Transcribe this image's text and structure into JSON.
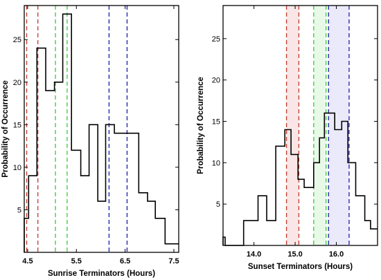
{
  "chart_data": [
    {
      "type": "histogram",
      "xlabel": "Sunrise Terminators (Hours)",
      "ylabel": "Probability of Occurrence",
      "xlim": [
        4.43,
        7.6
      ],
      "ylim": [
        0,
        29
      ],
      "xticks": [
        4.5,
        5.5,
        6.5,
        7.5
      ],
      "xtick_labels": [
        "4.5",
        "5.5",
        "6.5",
        "7.5"
      ],
      "yticks": [
        5,
        10,
        15,
        20,
        25
      ],
      "ytick_labels": [
        "5",
        "10",
        "15",
        "20",
        "25"
      ],
      "step": {
        "edges": [
          4.43,
          4.52,
          4.69,
          4.87,
          5.05,
          5.22,
          5.4,
          5.59,
          5.76,
          5.94,
          6.1,
          6.28,
          6.5,
          6.78,
          6.96,
          7.12,
          7.32,
          7.5,
          7.6
        ],
        "values": [
          4,
          9,
          24,
          19,
          20,
          28,
          12,
          9,
          15,
          6,
          15,
          14,
          14,
          7,
          6,
          4,
          1,
          1
        ]
      },
      "vlines": [
        {
          "x": 4.48,
          "color": "#c0392b",
          "style": "dashed"
        },
        {
          "x": 4.71,
          "color": "#c0392b",
          "style": "dashed"
        },
        {
          "x": 5.07,
          "color": "#33cc33",
          "style": "dashed"
        },
        {
          "x": 5.31,
          "color": "#33cc33",
          "style": "dashed"
        },
        {
          "x": 6.17,
          "color": "#1a1aaa",
          "style": "dashed"
        },
        {
          "x": 6.54,
          "color": "#1a1aaa",
          "style": "dashed"
        }
      ]
    },
    {
      "type": "histogram",
      "xlabel": "Sunset Terminators (Hours)",
      "ylabel": "Probability of Occurrence",
      "xlim": [
        13.25,
        17.0
      ],
      "ylim": [
        0,
        29
      ],
      "xticks": [
        14.0,
        15.0,
        16.0
      ],
      "xtick_labels": [
        "14.0",
        "15.0",
        "16.0"
      ],
      "yticks": [
        5,
        10,
        15,
        20,
        25
      ],
      "ytick_labels": [
        "5",
        "10",
        "15",
        "20",
        "25"
      ],
      "step": {
        "edges": [
          13.25,
          13.3,
          13.75,
          14.1,
          14.31,
          14.53,
          14.75,
          14.9,
          15.07,
          15.22,
          15.45,
          15.59,
          15.71,
          15.96,
          16.13,
          16.28,
          16.47,
          16.69,
          16.83,
          17.0
        ],
        "values": [
          1,
          0,
          3,
          6,
          3,
          12,
          14,
          11,
          8,
          7,
          10,
          13,
          16,
          14,
          15,
          10,
          6,
          3,
          2
        ]
      },
      "vlines": [
        {
          "x": 14.79,
          "color": "#c0392b",
          "style": "dashed"
        },
        {
          "x": 15.09,
          "color": "#c0392b",
          "style": "dashed"
        },
        {
          "x": 15.45,
          "color": "#33cc33",
          "style": "dashed"
        },
        {
          "x": 15.75,
          "color": "#33cc33",
          "style": "dashed"
        },
        {
          "x": 15.81,
          "color": "#1a1aaa",
          "style": "dashed"
        },
        {
          "x": 16.31,
          "color": "#1a1aaa",
          "style": "dashed"
        }
      ],
      "bands": [
        {
          "x0": 14.79,
          "x1": 15.09,
          "color": "#f6d6d6"
        },
        {
          "x0": 15.45,
          "x1": 15.75,
          "color": "#d9f5d9"
        },
        {
          "x0": 15.81,
          "x1": 16.31,
          "color": "#dcdcf6"
        }
      ]
    }
  ]
}
